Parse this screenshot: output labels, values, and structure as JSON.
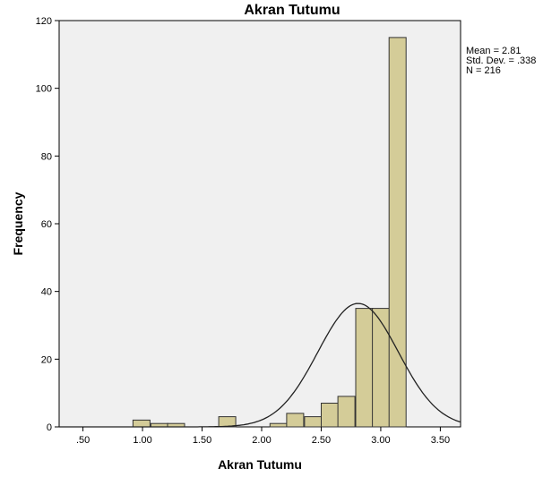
{
  "chart_data": {
    "type": "bar",
    "title": "Akran Tutumu",
    "xlabel": "Akran Tutumu",
    "ylabel": "Frequency",
    "xlim": [
      0.3,
      3.67
    ],
    "ylim": [
      0,
      120
    ],
    "x_ticks": [
      {
        "value": 0.5,
        "label": ".50"
      },
      {
        "value": 1.0,
        "label": "1.00"
      },
      {
        "value": 1.5,
        "label": "1.50"
      },
      {
        "value": 2.0,
        "label": "2.00"
      },
      {
        "value": 2.5,
        "label": "2.50"
      },
      {
        "value": 3.0,
        "label": "3.00"
      },
      {
        "value": 3.5,
        "label": "3.50"
      }
    ],
    "y_ticks": [
      0,
      20,
      40,
      60,
      80,
      100,
      120
    ],
    "bin_width": 0.143,
    "bins": [
      {
        "start": 0.92,
        "count": 2
      },
      {
        "start": 1.07,
        "count": 1
      },
      {
        "start": 1.21,
        "count": 1
      },
      {
        "start": 1.64,
        "count": 3
      },
      {
        "start": 2.07,
        "count": 1
      },
      {
        "start": 2.21,
        "count": 4
      },
      {
        "start": 2.36,
        "count": 3
      },
      {
        "start": 2.5,
        "count": 7
      },
      {
        "start": 2.64,
        "count": 9
      },
      {
        "start": 2.79,
        "count": 35
      },
      {
        "start": 2.93,
        "count": 35
      },
      {
        "start": 3.07,
        "count": 115
      }
    ],
    "normal_curve": {
      "mean": 2.81,
      "sd": 0.338,
      "n": 216
    },
    "stats": [
      "Mean = 2.81",
      "Std. Dev. = .338",
      "N = 216"
    ],
    "colors": {
      "bar_fill": "#d4cc98",
      "bar_stroke": "#333333",
      "plot_background": "#f0f0f0",
      "curve": "#222222"
    }
  }
}
